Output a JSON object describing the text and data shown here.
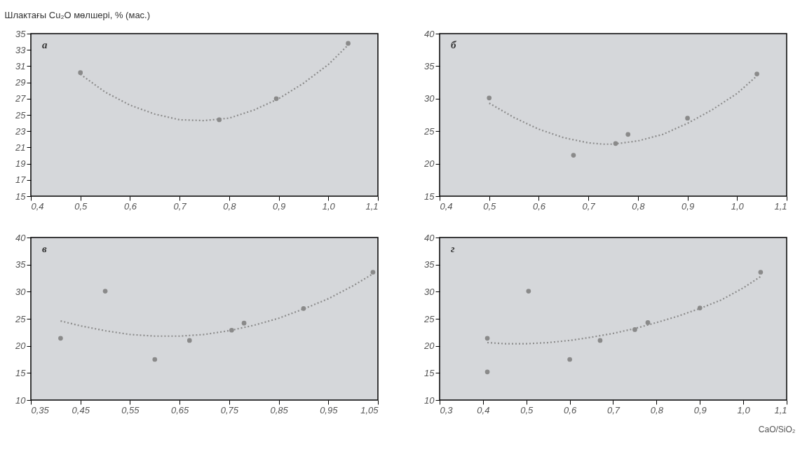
{
  "chart_data": [
    {
      "type": "scatter",
      "ylabel": "Шлактағы Cu₂O мөлшері, % (мас.)",
      "annotations": [
        "а"
      ],
      "marker": "circle",
      "grid": false,
      "xlim": [
        0.4,
        1.1
      ],
      "xticks": [
        {
          "value": 0.4,
          "label": "0,4"
        },
        {
          "value": 0.5,
          "label": "0,5"
        },
        {
          "value": 0.6,
          "label": "0,6"
        },
        {
          "value": 0.7,
          "label": "0,7"
        },
        {
          "value": 0.8,
          "label": "0,8"
        },
        {
          "value": 0.9,
          "label": "0,9"
        },
        {
          "value": 1.0,
          "label": "1,0"
        },
        {
          "value": 1.1,
          "label": "1,1"
        }
      ],
      "ylim": [
        15,
        35
      ],
      "yticks": [
        15,
        17,
        19,
        21,
        23,
        25,
        27,
        29,
        31,
        33,
        35
      ],
      "series": [
        {
          "type": "scatter",
          "color": "#8a8a8a",
          "x": [
            0.5,
            0.78,
            0.895,
            1.04
          ],
          "values": [
            30.2,
            24.4,
            27.0,
            33.8
          ]
        },
        {
          "type": "line",
          "line_style": "dotted",
          "marker": "none",
          "color": "#8c8c8c",
          "x": [
            0.5,
            0.55,
            0.6,
            0.65,
            0.7,
            0.75,
            0.8,
            0.85,
            0.9,
            0.95,
            1.0,
            1.04
          ],
          "values": [
            30.0,
            27.8,
            26.2,
            25.1,
            24.4,
            24.3,
            24.6,
            25.6,
            27.0,
            28.9,
            31.2,
            33.6
          ]
        }
      ]
    },
    {
      "type": "scatter",
      "annotations": [
        "б"
      ],
      "marker": "circle",
      "grid": false,
      "xlim": [
        0.4,
        1.1
      ],
      "xticks": [
        {
          "value": 0.4,
          "label": "0,4"
        },
        {
          "value": 0.5,
          "label": "0,5"
        },
        {
          "value": 0.6,
          "label": "0,6"
        },
        {
          "value": 0.7,
          "label": "0,7"
        },
        {
          "value": 0.8,
          "label": "0,8"
        },
        {
          "value": 0.9,
          "label": "0,9"
        },
        {
          "value": 1.0,
          "label": "1,0"
        },
        {
          "value": 1.1,
          "label": "1,1"
        }
      ],
      "ylim": [
        15,
        40
      ],
      "yticks": [
        15,
        20,
        25,
        30,
        35,
        40
      ],
      "series": [
        {
          "type": "scatter",
          "color": "#8a8a8a",
          "x": [
            0.5,
            0.67,
            0.755,
            0.78,
            0.9,
            1.04
          ],
          "values": [
            30.1,
            21.3,
            23.1,
            24.5,
            27.0,
            33.8
          ]
        },
        {
          "type": "line",
          "line_style": "dotted",
          "marker": "none",
          "color": "#8c8c8c",
          "x": [
            0.5,
            0.55,
            0.6,
            0.65,
            0.7,
            0.73,
            0.75,
            0.8,
            0.85,
            0.9,
            0.95,
            1.0,
            1.04
          ],
          "values": [
            29.3,
            27.1,
            25.3,
            24.0,
            23.2,
            23.0,
            23.0,
            23.5,
            24.5,
            26.2,
            28.3,
            30.8,
            33.5
          ]
        }
      ]
    },
    {
      "type": "scatter",
      "annotations": [
        "в"
      ],
      "marker": "circle",
      "grid": false,
      "xlim": [
        0.35,
        1.05
      ],
      "xticks": [
        {
          "value": 0.35,
          "label": "0,35"
        },
        {
          "value": 0.45,
          "label": "0,45"
        },
        {
          "value": 0.55,
          "label": "0,55"
        },
        {
          "value": 0.65,
          "label": "0,65"
        },
        {
          "value": 0.75,
          "label": "0,75"
        },
        {
          "value": 0.85,
          "label": "0,85"
        },
        {
          "value": 0.95,
          "label": "0,95"
        },
        {
          "value": 1.05,
          "label": "1,05"
        }
      ],
      "ylim": [
        10,
        40
      ],
      "yticks": [
        10,
        15,
        20,
        25,
        30,
        35,
        40
      ],
      "series": [
        {
          "type": "scatter",
          "color": "#8a8a8a",
          "x": [
            0.41,
            0.5,
            0.6,
            0.67,
            0.755,
            0.78,
            0.9,
            1.04
          ],
          "values": [
            21.4,
            30.1,
            17.5,
            21.0,
            22.9,
            24.2,
            26.9,
            33.6
          ]
        },
        {
          "type": "line",
          "line_style": "dotted",
          "marker": "none",
          "color": "#8c8c8c",
          "x": [
            0.41,
            0.45,
            0.5,
            0.55,
            0.6,
            0.65,
            0.7,
            0.75,
            0.8,
            0.85,
            0.9,
            0.95,
            1.0,
            1.04
          ],
          "values": [
            24.6,
            23.7,
            22.8,
            22.1,
            21.8,
            21.8,
            22.1,
            22.8,
            23.8,
            25.1,
            26.8,
            28.7,
            31.1,
            33.3
          ]
        }
      ]
    },
    {
      "type": "scatter",
      "xlabel": "CaO/SiO₂",
      "annotations": [
        "г"
      ],
      "marker": "circle",
      "grid": false,
      "xlim": [
        0.3,
        1.1
      ],
      "xticks": [
        {
          "value": 0.3,
          "label": "0,3"
        },
        {
          "value": 0.4,
          "label": "0,4"
        },
        {
          "value": 0.5,
          "label": "0,5"
        },
        {
          "value": 0.6,
          "label": "0,6"
        },
        {
          "value": 0.7,
          "label": "0,7"
        },
        {
          "value": 0.8,
          "label": "0,8"
        },
        {
          "value": 0.9,
          "label": "0,9"
        },
        {
          "value": 1.0,
          "label": "1,0"
        },
        {
          "value": 1.1,
          "label": "1,1"
        }
      ],
      "ylim": [
        10,
        40
      ],
      "yticks": [
        10,
        15,
        20,
        25,
        30,
        35,
        40
      ],
      "series": [
        {
          "type": "scatter",
          "color": "#8a8a8a",
          "x": [
            0.41,
            0.41,
            0.505,
            0.6,
            0.67,
            0.75,
            0.78,
            0.9,
            1.04
          ],
          "values": [
            21.4,
            15.2,
            30.1,
            17.5,
            21.0,
            23.0,
            24.3,
            27.0,
            33.6
          ]
        },
        {
          "type": "line",
          "line_style": "dotted",
          "marker": "none",
          "color": "#8c8c8c",
          "x": [
            0.41,
            0.45,
            0.5,
            0.55,
            0.6,
            0.65,
            0.7,
            0.75,
            0.8,
            0.85,
            0.9,
            0.95,
            1.0,
            1.04
          ],
          "values": [
            20.6,
            20.4,
            20.4,
            20.6,
            21.0,
            21.6,
            22.3,
            23.2,
            24.3,
            25.5,
            26.9,
            28.5,
            30.7,
            32.8
          ]
        }
      ]
    }
  ]
}
